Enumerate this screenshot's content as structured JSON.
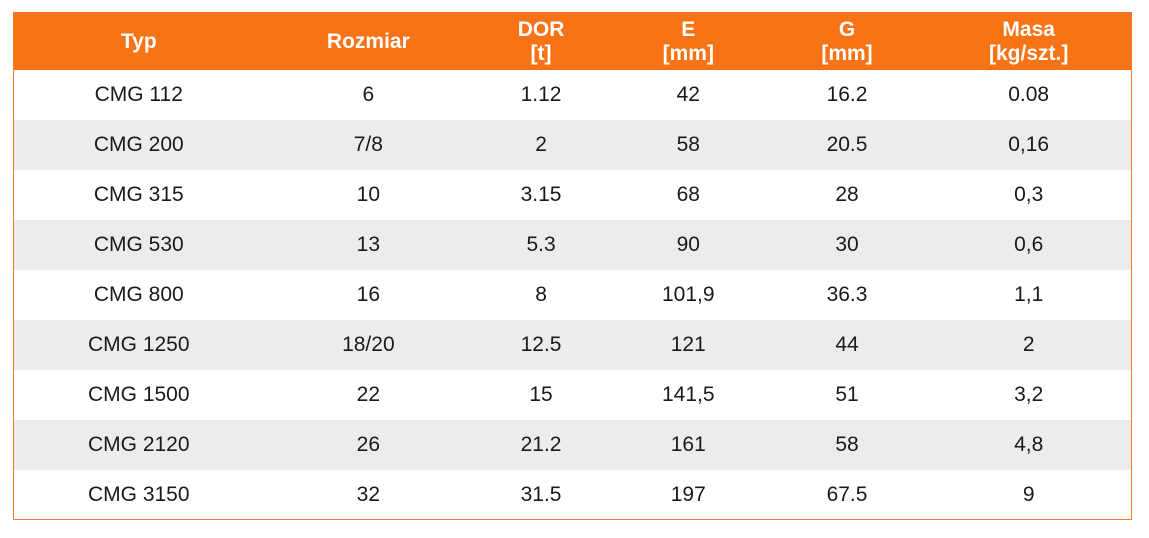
{
  "header": {
    "typ": "Typ",
    "rozmiar": "Rozmiar",
    "dor": [
      "DOR",
      "[t]"
    ],
    "e": [
      "E",
      "[mm]"
    ],
    "g": [
      "G",
      "[mm]"
    ],
    "masa": [
      "Masa",
      "[kg/szt.]"
    ]
  },
  "rows": [
    [
      "CMG 112",
      "6",
      "1.12",
      "42",
      "16.2",
      "0.08"
    ],
    [
      "CMG 200",
      "7/8",
      "2",
      "58",
      "20.5",
      "0,16"
    ],
    [
      "CMG 315",
      "10",
      "3.15",
      "68",
      "28",
      "0,3"
    ],
    [
      "CMG 530",
      "13",
      "5.3",
      "90",
      "30",
      "0,6"
    ],
    [
      "CMG 800",
      "16",
      "8",
      "101,9",
      "36.3",
      "1,1"
    ],
    [
      "CMG 1250",
      "18/20",
      "12.5",
      "121",
      "44",
      "2"
    ],
    [
      "CMG 1500",
      "22",
      "15",
      "141,5",
      "51",
      "3,2"
    ],
    [
      "CMG 2120",
      "26",
      "21.2",
      "161",
      "58",
      "4,8"
    ],
    [
      "CMG 3150",
      "32",
      "31.5",
      "197",
      "67.5",
      "9"
    ]
  ],
  "colors": {
    "header_bg": "#f77316",
    "header_text": "#ffffff",
    "stripe": "#ececec",
    "border": "#f07b2a"
  }
}
